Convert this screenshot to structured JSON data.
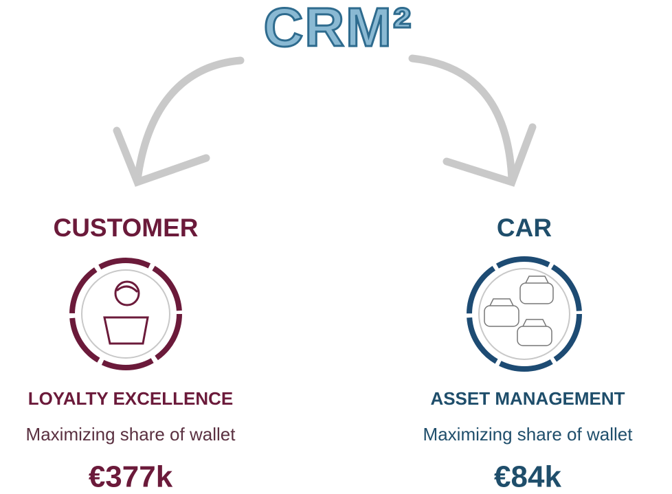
{
  "title": "CRM²",
  "columns": [
    {
      "heading": "CUSTOMER",
      "subheading": "LOYALTY EXCELLENCE",
      "description": "Maximizing share of wallet",
      "value": "€377k"
    },
    {
      "heading": "CAR",
      "subheading": "ASSET MANAGEMENT",
      "description": "Maximizing share of wallet",
      "value": "€84k"
    }
  ]
}
